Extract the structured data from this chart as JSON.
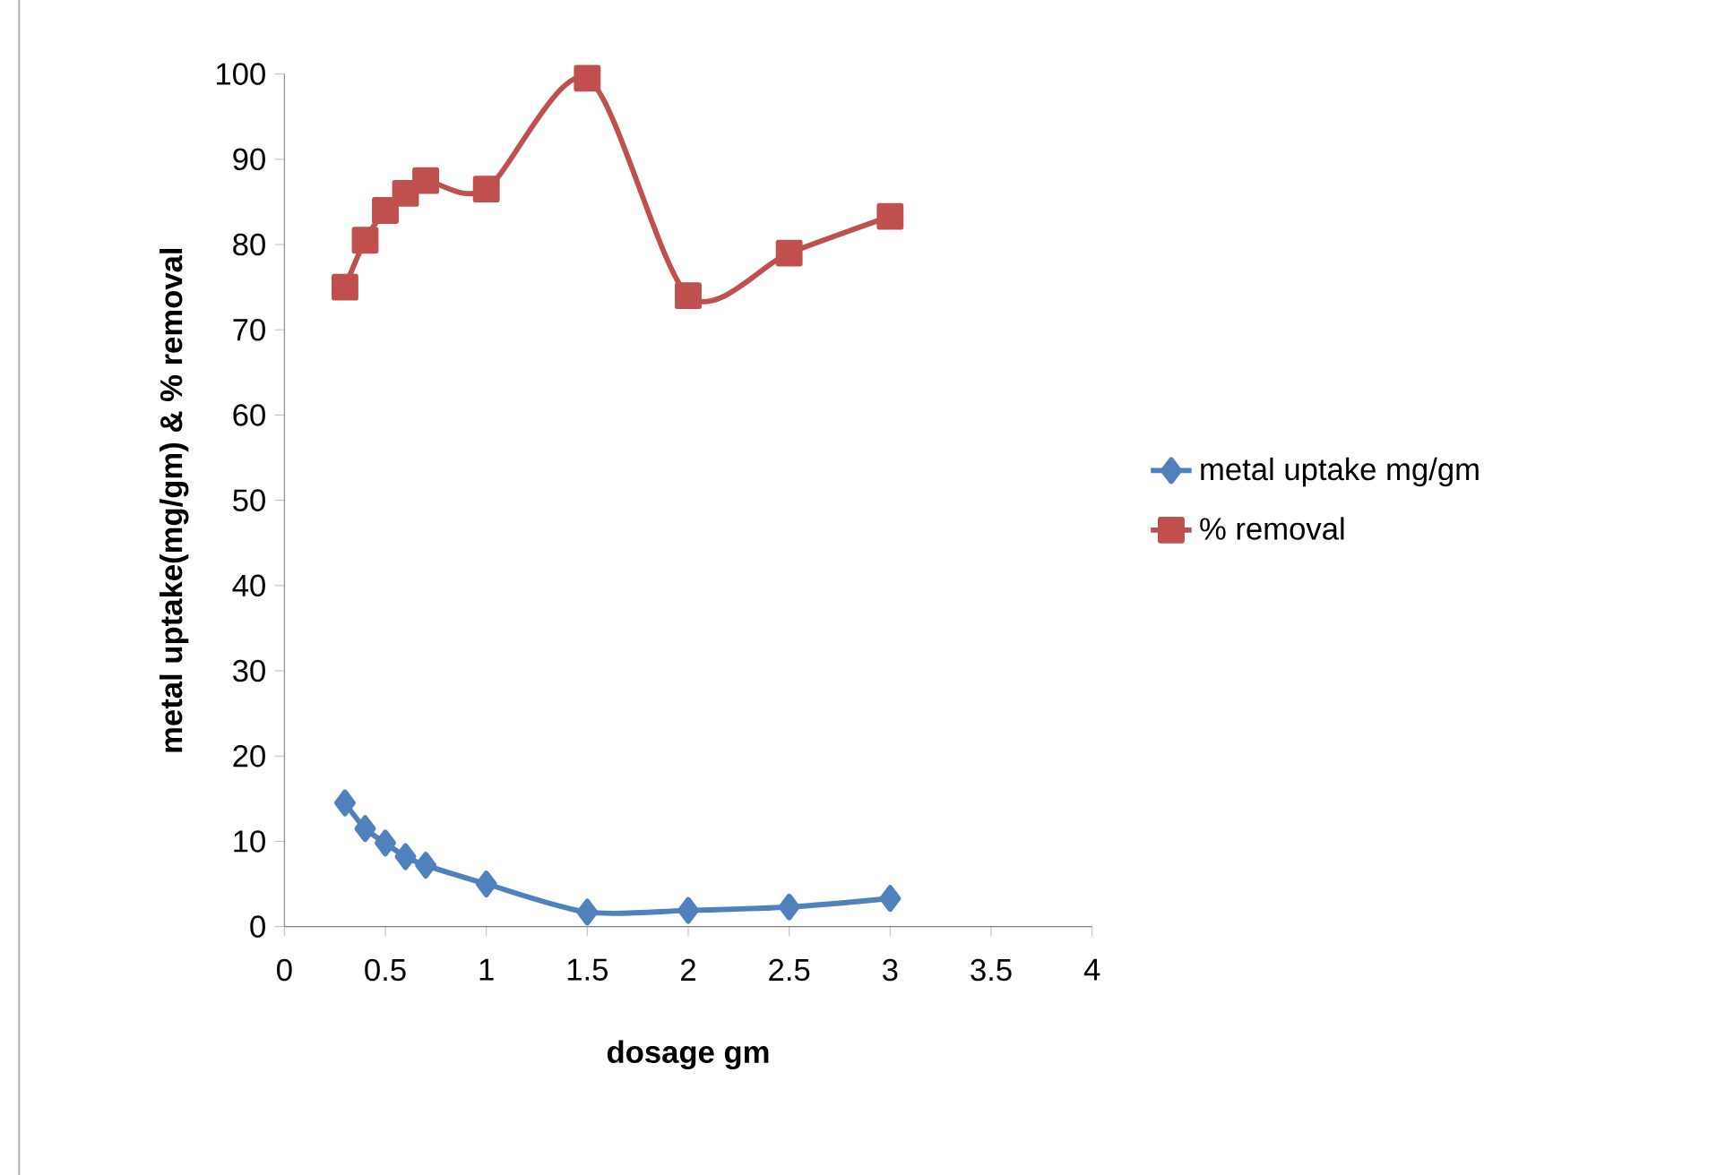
{
  "chart_data": {
    "type": "line",
    "xlabel": "dosage gm",
    "ylabel": "metal uptake(mg/gm) & % removal",
    "x": [
      0.3,
      0.4,
      0.5,
      0.6,
      0.7,
      1,
      1.5,
      2,
      2.5,
      3
    ],
    "series": [
      {
        "name": "metal uptake mg/gm",
        "color": "#4f81bd",
        "marker": "diamond",
        "values": [
          14.5,
          11.5,
          9.8,
          8.2,
          7.2,
          5,
          1.7,
          1.9,
          2.3,
          3.3
        ]
      },
      {
        "name": "%  removal",
        "color": "#c0504d",
        "marker": "square",
        "values": [
          75,
          80.5,
          84,
          86,
          87.5,
          86.5,
          99.5,
          74,
          79,
          83.3
        ]
      }
    ],
    "xlim": [
      0,
      4
    ],
    "xticks": [
      0,
      0.5,
      1,
      1.5,
      2,
      2.5,
      3,
      3.5,
      4
    ],
    "ylim": [
      0,
      100
    ],
    "yticks": [
      0,
      10,
      20,
      30,
      40,
      50,
      60,
      70,
      80,
      90,
      100
    ],
    "grid": false,
    "legend": "right",
    "line_style": "solid"
  }
}
